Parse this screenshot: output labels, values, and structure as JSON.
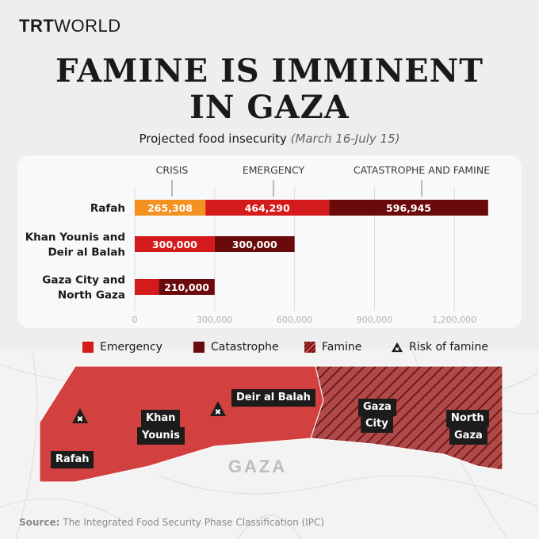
{
  "brand": {
    "logo_bold": "TRT",
    "logo_light": "WORLD"
  },
  "header": {
    "title_line1": "FAMINE IS IMMINENT",
    "title_line2": "IN GAZA",
    "subtitle": "Projected food insecurity",
    "period": "(March 16-July 15)"
  },
  "colors": {
    "crisis": "#f39121",
    "emergency": "#d41a1a",
    "catastrophe": "#6b0a0a",
    "map_fill": "#d24040"
  },
  "chart_data": {
    "type": "bar",
    "orientation": "horizontal",
    "stacked": true,
    "categories": [
      "Rafah",
      "Khan Younis and Deir al Balah",
      "Gaza City and North Gaza"
    ],
    "category_lines": [
      [
        "Rafah"
      ],
      [
        "Khan Younis and",
        "Deir al Balah"
      ],
      [
        "Gaza City and",
        "North Gaza"
      ]
    ],
    "column_headers": [
      "CRISIS",
      "EMERGENCY",
      "CATASTROPHE AND FAMINE"
    ],
    "series": [
      {
        "name": "Crisis",
        "values": [
          265308,
          0,
          0
        ]
      },
      {
        "name": "Emergency",
        "values": [
          464290,
          300000,
          90000
        ]
      },
      {
        "name": "Catastrophe",
        "values": [
          596945,
          300000,
          210000
        ]
      }
    ],
    "data_labels": [
      [
        "265,308",
        "464,290",
        "596,945"
      ],
      [
        "",
        "300,000",
        "300,000"
      ],
      [
        "",
        "",
        "210,000"
      ]
    ],
    "xticks": [
      0,
      300000,
      600000,
      900000,
      1200000
    ],
    "xtick_labels": [
      "0",
      "300,000",
      "600,000",
      "900,000",
      "1,200,000"
    ],
    "xlim": [
      0,
      1330000
    ],
    "grid": true
  },
  "legend": [
    {
      "label": "Emergency",
      "icon": "solid-square"
    },
    {
      "label": "Catastrophe",
      "icon": "solid-square"
    },
    {
      "label": "Famine",
      "icon": "hatched-square"
    },
    {
      "label": "Risk of famine",
      "icon": "warning-triangle"
    }
  ],
  "map": {
    "labels": {
      "rafah": "Rafah",
      "khan_younis": [
        "Khan",
        "Younis"
      ],
      "deir_al_balah": "Deir al Balah",
      "gaza_city": [
        "Gaza",
        "City"
      ],
      "north_gaza": [
        "North",
        "Gaza"
      ],
      "region": "GAZA"
    }
  },
  "source": {
    "label": "Source:",
    "text": "The Integrated Food Security Phase Classification (IPC)"
  }
}
